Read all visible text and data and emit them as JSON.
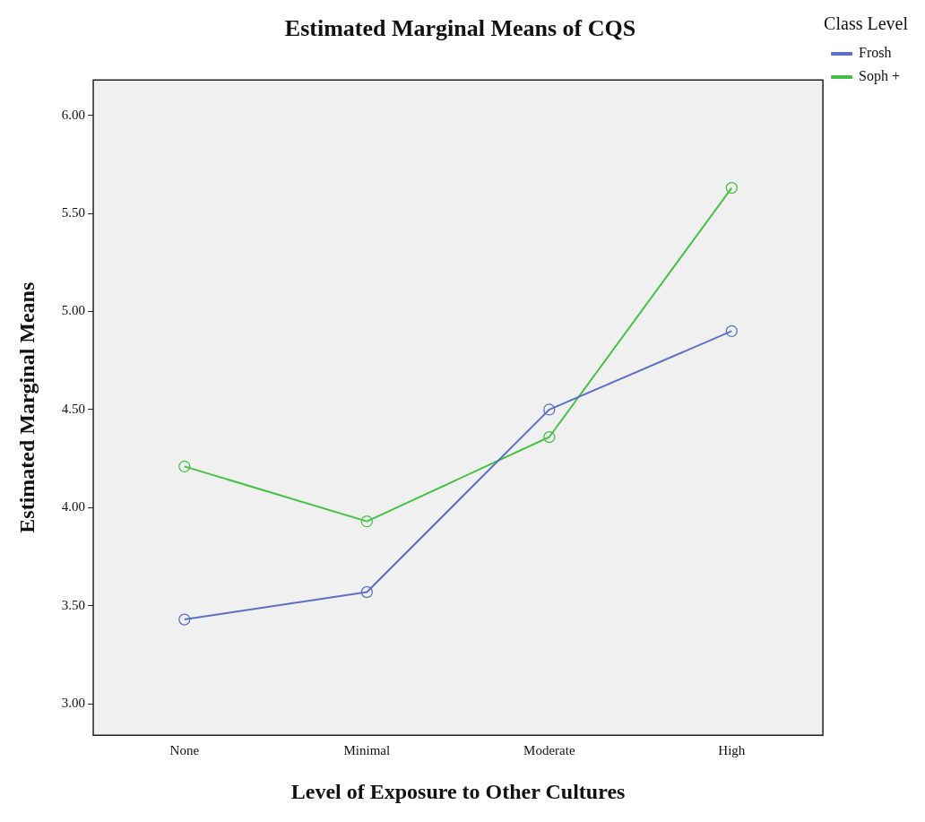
{
  "chart_data": {
    "type": "line",
    "title": "Estimated Marginal Means of CQS",
    "xlabel": "Level of Exposure to Other Cultures",
    "ylabel": "Estimated Marginal Means",
    "legend_title": "Class Level",
    "categories": [
      "None",
      "Minimal",
      "Moderate",
      "High"
    ],
    "series": [
      {
        "name": "Frosh",
        "color": "#5b6fc4",
        "values": [
          3.43,
          3.57,
          4.5,
          4.9
        ]
      },
      {
        "name": "Soph +",
        "color": "#45c045",
        "values": [
          4.21,
          3.93,
          4.36,
          5.63
        ]
      }
    ],
    "ylim": [
      2.84,
      6.18
    ],
    "yticks": [
      {
        "value": 3,
        "label": "3.00"
      },
      {
        "value": 3.5,
        "label": "3.50"
      },
      {
        "value": 4,
        "label": "4.00"
      },
      {
        "value": 4.5,
        "label": "4.50"
      },
      {
        "value": 5,
        "label": "5.00"
      },
      {
        "value": 5.5,
        "label": "5.50"
      },
      {
        "value": 6,
        "label": "6.00"
      }
    ],
    "grid": false,
    "legend": "right",
    "marker": "circle",
    "line_style": "solid"
  }
}
